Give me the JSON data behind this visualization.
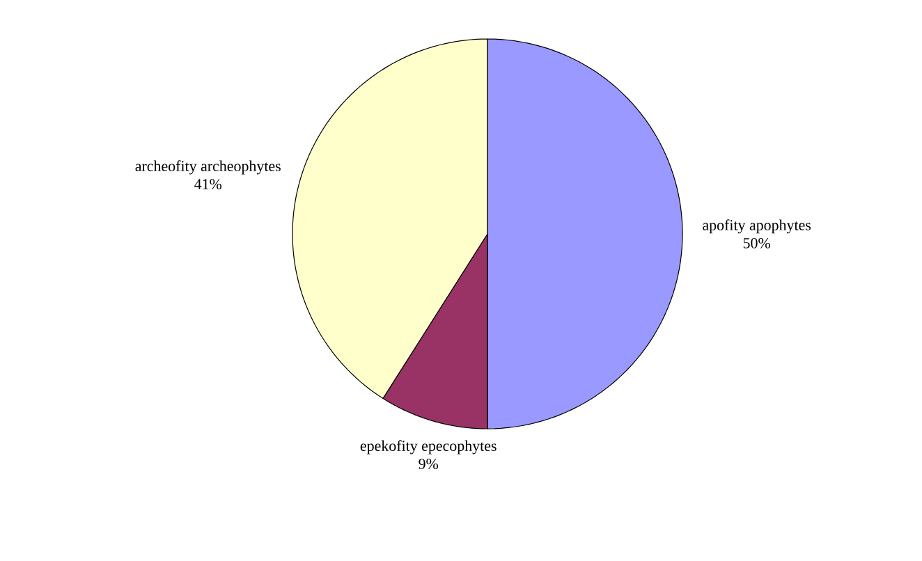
{
  "chart_data": {
    "type": "pie",
    "categories": [
      "apofity apophytes",
      "epekofity epecophytes",
      "archeofity archeophytes"
    ],
    "values": [
      50,
      9,
      41
    ],
    "value_labels": [
      "50%",
      "9%",
      "41%"
    ],
    "colors": [
      "#9999ff",
      "#993366",
      "#ffffcc"
    ]
  }
}
